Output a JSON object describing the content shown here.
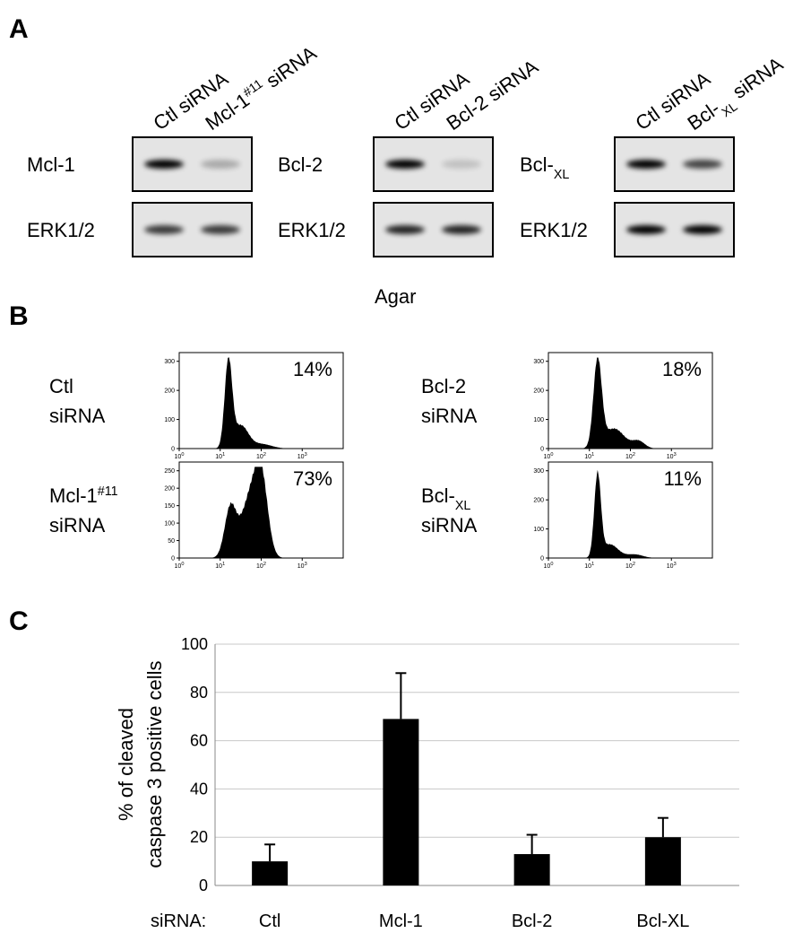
{
  "figure": {
    "panel_a": {
      "label": "A",
      "blots": [
        {
          "lanes": [
            {
              "text": "Ctl siRNA"
            },
            {
              "text": "Mcl-1",
              "sup": "#11",
              "after": " siRNA"
            }
          ],
          "rows": [
            {
              "text": "Mcl-1"
            },
            {
              "text": "ERK1/2"
            }
          ]
        },
        {
          "lanes": [
            {
              "text": "Ctl siRNA"
            },
            {
              "text": "Bcl-2 siRNA"
            }
          ],
          "rows": [
            {
              "text": "Bcl-2"
            },
            {
              "text": "ERK1/2"
            }
          ]
        },
        {
          "lanes": [
            {
              "text": "Ctl siRNA"
            },
            {
              "text": "Bcl-",
              "sub": "XL",
              "after": " siRNA"
            }
          ],
          "rows": [
            {
              "text": "Bcl-",
              "sub": "XL"
            },
            {
              "text": "ERK1/2"
            }
          ]
        }
      ]
    },
    "panel_b": {
      "label": "B",
      "title": "Agar",
      "xscale": "log",
      "xlim": [
        1,
        10000
      ],
      "xticks": [
        {
          "value": 1,
          "label": "10",
          "sup": "0"
        },
        {
          "value": 10,
          "label": "10",
          "sup": "1"
        },
        {
          "value": 100,
          "label": "10",
          "sup": "2"
        },
        {
          "value": 1000,
          "label": "10",
          "sup": "3"
        }
      ],
      "histograms": [
        {
          "label": [
            {
              "text": "Ctl"
            },
            {
              "text": "siRNA"
            }
          ],
          "percent": "14%",
          "ylim": [
            0,
            330
          ],
          "yticks": [
            0,
            100,
            200,
            300
          ]
        },
        {
          "label": [
            {
              "text": "Mcl-1",
              "sup": "#11"
            },
            {
              "text": "siRNA"
            }
          ],
          "percent": "73%",
          "ylim": [
            0,
            275
          ],
          "yticks": [
            0,
            50,
            100,
            150,
            200,
            250
          ]
        },
        {
          "label": [
            {
              "text": "Bcl-2"
            },
            {
              "text": "siRNA"
            }
          ],
          "percent": "18%",
          "ylim": [
            0,
            330
          ],
          "yticks": [
            0,
            100,
            200,
            300
          ]
        },
        {
          "label": [
            {
              "text": "Bcl-",
              "sub": "XL"
            },
            {
              "text": "siRNA"
            }
          ],
          "percent": "11%",
          "ylim": [
            0,
            330
          ],
          "yticks": [
            0,
            100,
            200,
            300
          ]
        }
      ]
    },
    "panel_c": {
      "label": "C"
    }
  },
  "chart_data": {
    "type": "bar",
    "y_label": [
      "% of cleaved",
      "caspase 3 positive cells"
    ],
    "x_prefix": "siRNA:",
    "categories": [
      "Ctl",
      "Mcl-1",
      "Bcl-2",
      "Bcl-XL"
    ],
    "values": [
      10,
      69,
      13,
      20
    ],
    "errors": [
      7,
      19,
      8,
      8
    ],
    "color": "#000000",
    "ylim": [
      0,
      100
    ],
    "yticks": [
      0,
      20,
      40,
      60,
      80,
      100
    ],
    "grid": true
  }
}
